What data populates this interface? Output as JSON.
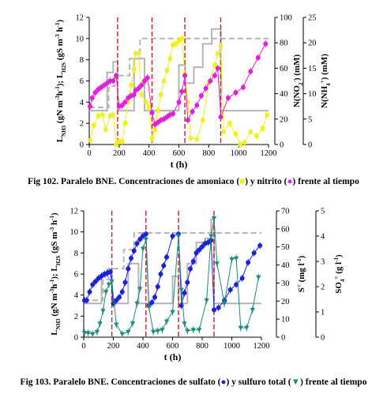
{
  "chart_data": [
    {
      "type": "line",
      "xlabel": "t (h)",
      "ylabel_left": "L_NH3 (gN m-3 h-1); L_H2S (gS m-3 h-1)",
      "ylabel_right1": "N(NO2-) (mM)",
      "ylabel_right2": "N(NH4+) (mM)",
      "xlim": [
        0,
        1200
      ],
      "x_ticks": [
        "0",
        "200",
        "400",
        "600",
        "800",
        "1000",
        "1200"
      ],
      "ylim_left": [
        0,
        12
      ],
      "y_ticks_left": [
        "0",
        "2",
        "4",
        "6",
        "8",
        "10",
        "12"
      ],
      "ylim_right1": [
        0,
        100
      ],
      "y_ticks_right1": [
        "0",
        "20",
        "40",
        "60",
        "80",
        "100"
      ],
      "ylim_right2": [
        0,
        25
      ],
      "y_ticks_right2": [
        "0",
        "5",
        "10",
        "15",
        "20",
        "25"
      ],
      "vlines": [
        190,
        420,
        640,
        880
      ],
      "colors": {
        "step_solid": "#b4b4b4",
        "step_dashed": "#b4b4b4",
        "ammonia": "#f0f020",
        "nitrite": "#e020d8",
        "vline": "#cc1f1f"
      },
      "series": [
        {
          "role": "step_solid",
          "x": [
            0,
            120,
            120,
            160,
            160,
            190,
            190,
            300,
            300,
            370,
            370,
            430,
            430,
            600,
            600,
            640,
            640,
            700,
            700,
            760,
            760,
            820,
            820,
            850,
            850,
            860,
            860,
            880,
            880,
            1200
          ],
          "y": [
            3.2,
            3.2,
            6.8,
            6.8,
            7.8,
            7.8,
            3.2,
            3.2,
            8.1,
            8.1,
            3.2,
            3.2,
            3.2,
            3.2,
            7.5,
            7.5,
            5.8,
            5.8,
            7.3,
            7.3,
            9.5,
            9.5,
            10.9,
            10.9,
            10.9,
            10.9,
            10.9,
            10.9,
            3.2,
            3.2
          ]
        },
        {
          "role": "step_dashed",
          "x": [
            0,
            130,
            130,
            170,
            170,
            270,
            270,
            340,
            340,
            1100,
            1100,
            1200
          ],
          "y": [
            3.5,
            3.5,
            5.5,
            5.5,
            6.5,
            6.5,
            8.1,
            8.1,
            10.0,
            10.0,
            10.0,
            10.0
          ]
        },
        {
          "role": "ammonia",
          "x": [
            5,
            30,
            60,
            90,
            110,
            140,
            160,
            180,
            200,
            220,
            240,
            260,
            280,
            300,
            310,
            330,
            350,
            380,
            400,
            420,
            440,
            460,
            480,
            500,
            520,
            540,
            560,
            580,
            600,
            620,
            640,
            660,
            680,
            720,
            760,
            800,
            840,
            860,
            880,
            900,
            940,
            980,
            1010,
            1040,
            1080,
            1120,
            1160,
            1190
          ],
          "y": [
            0.4,
            1.8,
            2.7,
            2.8,
            1.4,
            2.7,
            2.8,
            0.0,
            0.3,
            0.3,
            2.0,
            4.0,
            5.6,
            7.1,
            8.6,
            8.6,
            4.7,
            4.0,
            3.5,
            0.6,
            1.4,
            3.2,
            4.7,
            6.0,
            7.0,
            8.1,
            9.4,
            9.5,
            9.8,
            10.0,
            6.7,
            4.0,
            0.6,
            0.5,
            2.3,
            5.8,
            7.5,
            8.6,
            9.3,
            1.2,
            2.0,
            1.0,
            0.0,
            0.2,
            1.2,
            0.8,
            1.5,
            2.8
          ]
        },
        {
          "role": "nitrite",
          "x": [
            5,
            20,
            40,
            60,
            80,
            100,
            120,
            140,
            160,
            180,
            200,
            220,
            240,
            260,
            280,
            300,
            310,
            330,
            350,
            370,
            390,
            420,
            440,
            460,
            480,
            500,
            520,
            540,
            560,
            600,
            620,
            640,
            660,
            690,
            720,
            750,
            780,
            810,
            840,
            860,
            880,
            930,
            980,
            1030,
            1080,
            1130,
            1180
          ],
          "y": [
            3.6,
            4.4,
            4.9,
            5.2,
            5.4,
            5.6,
            5.8,
            6.0,
            6.0,
            6.5,
            3.6,
            3.7,
            4.0,
            4.4,
            4.6,
            4.7,
            5.1,
            5.3,
            5.6,
            6.0,
            6.3,
            3.0,
            1.9,
            2.1,
            2.3,
            2.4,
            2.6,
            2.8,
            2.9,
            4.0,
            5.0,
            6.5,
            2.3,
            3.1,
            3.7,
            4.6,
            5.3,
            6.0,
            6.5,
            7.2,
            2.6,
            4.4,
            4.9,
            5.4,
            6.9,
            8.2,
            9.5
          ]
        }
      ]
    },
    {
      "type": "line",
      "xlabel": "t (h)",
      "ylabel_left": "L_NH3 (gN m-3 h-1); L_H2S (gS m-3 h-1)",
      "ylabel_right1": "S= (mg l-1)",
      "ylabel_right2": "SO4= (g l-1)",
      "xlim": [
        0,
        1200
      ],
      "x_ticks": [
        "0",
        "200",
        "400",
        "600",
        "800",
        "1000",
        "1200"
      ],
      "ylim_left": [
        0,
        12
      ],
      "y_ticks_left": [
        "0",
        "2",
        "4",
        "6",
        "8",
        "10",
        "12"
      ],
      "ylim_right1": [
        0,
        70
      ],
      "y_ticks_right1": [
        "0",
        "10",
        "20",
        "30",
        "40",
        "50",
        "60",
        "70"
      ],
      "ylim_right2": [
        0,
        5
      ],
      "y_ticks_right2": [
        "0",
        "1",
        "2",
        "3",
        "4",
        "5"
      ],
      "vlines": [
        190,
        420,
        640,
        880
      ],
      "colors": {
        "step_solid": "#b4b4b4",
        "step_dashed": "#b4b4b4",
        "sulfate": "#1a22d8",
        "sulfide": "#1e8a80",
        "vline": "#cc1f1f"
      },
      "series": [
        {
          "role": "step_solid",
          "x": [
            0,
            120,
            120,
            160,
            160,
            190,
            190,
            300,
            300,
            370,
            370,
            430,
            430,
            600,
            600,
            640,
            640,
            700,
            700,
            760,
            760,
            820,
            820,
            860,
            860,
            880,
            880,
            1200
          ],
          "y": [
            3.2,
            3.2,
            5.8,
            5.8,
            6.4,
            6.4,
            3.2,
            3.2,
            7.0,
            7.0,
            3.2,
            3.2,
            3.2,
            3.2,
            5.8,
            5.8,
            3.2,
            3.2,
            7.0,
            7.0,
            9.0,
            9.0,
            9.4,
            9.4,
            11.2,
            11.2,
            3.2,
            3.2
          ]
        },
        {
          "role": "step_dashed",
          "x": [
            0,
            130,
            130,
            170,
            170,
            270,
            270,
            340,
            340,
            1200
          ],
          "y": [
            3.5,
            3.5,
            5.5,
            5.5,
            6.5,
            6.5,
            8.3,
            8.3,
            9.9,
            9.9
          ]
        },
        {
          "role": "sulfate",
          "x": [
            5,
            20,
            40,
            60,
            80,
            100,
            120,
            140,
            160,
            180,
            200,
            220,
            240,
            260,
            280,
            300,
            320,
            340,
            360,
            380,
            400,
            420,
            440,
            460,
            480,
            500,
            520,
            540,
            560,
            600,
            640,
            660,
            680,
            700,
            720,
            740,
            760,
            780,
            800,
            820,
            840,
            860,
            880,
            910,
            950,
            990,
            1030,
            1070,
            1110,
            1150,
            1190
          ],
          "y": [
            3.5,
            3.5,
            4.3,
            5.0,
            5.3,
            5.6,
            5.8,
            6.0,
            6.1,
            6.2,
            3.2,
            3.5,
            3.8,
            4.3,
            5.2,
            6.5,
            7.5,
            8.2,
            8.9,
            9.3,
            9.6,
            9.8,
            3.0,
            3.3,
            3.8,
            4.8,
            6.0,
            6.8,
            7.6,
            9.6,
            9.8,
            3.0,
            4.2,
            5.2,
            6.5,
            7.2,
            8.0,
            8.3,
            8.6,
            8.9,
            9.0,
            9.2,
            2.6,
            2.8,
            3.5,
            4.5,
            5.0,
            5.6,
            7.1,
            8.0,
            8.7
          ]
        },
        {
          "role": "sulfide",
          "x": [
            5,
            30,
            60,
            90,
            110,
            130,
            150,
            170,
            190,
            220,
            260,
            300,
            330,
            360,
            380,
            400,
            420,
            440,
            470,
            500,
            530,
            560,
            600,
            640,
            660,
            680,
            700,
            740,
            780,
            830,
            860,
            880,
            900,
            950,
            1000,
            1030,
            1060,
            1100,
            1140,
            1180
          ],
          "y": [
            0.4,
            0.4,
            0.3,
            0.5,
            1.3,
            2.5,
            4.3,
            5.0,
            5.3,
            1.2,
            0.3,
            0.5,
            1.3,
            3.2,
            4.6,
            8.4,
            9.3,
            2.9,
            0.5,
            0.6,
            0.7,
            1.5,
            2.4,
            9.6,
            4.5,
            1.3,
            0.6,
            0.7,
            0.7,
            3.5,
            9.6,
            11.3,
            7.0,
            3.2,
            7.4,
            7.5,
            0.9,
            0.9,
            2.6,
            5.7
          ]
        }
      ]
    }
  ],
  "captions": {
    "fig102": {
      "before": "Fig 102. Paralelo BNE. Concentraciones de amoniaco (",
      "mid": ") y nitrito (",
      "after": ") frente al tiempo",
      "sym1": "■",
      "sym2": "●"
    },
    "fig103": {
      "before": "Fig 103. Paralelo BNE. Concentraciones de sulfato (",
      "mid": ") y sulfuro total (",
      "after": ") frente al tiempo",
      "sym1": "●",
      "sym2": "▼"
    }
  }
}
